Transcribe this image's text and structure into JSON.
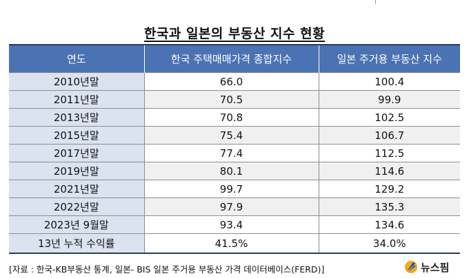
{
  "title": "한국과 일본의 부동산 지수 현황",
  "table": {
    "headers": [
      "연도",
      "한국 주택매매가격 종합지수",
      "일본 주거용 부동산 지수"
    ],
    "rows": [
      [
        "2010년말",
        "66.0",
        "100.4"
      ],
      [
        "2011년말",
        "70.5",
        "99.9"
      ],
      [
        "2013년말",
        "70.8",
        "102.5"
      ],
      [
        "2015년말",
        "75.4",
        "106.7"
      ],
      [
        "2017년말",
        "77.4",
        "112.5"
      ],
      [
        "2019년말",
        "80.1",
        "114.6"
      ],
      [
        "2021년말",
        "99.7",
        "129.2"
      ],
      [
        "2022년말",
        "97.9",
        "135.3"
      ],
      [
        "2023년 9월말",
        "93.4",
        "134.6"
      ]
    ],
    "total_row": [
      "13년 누적 수익률",
      "41.5%",
      "34.0%"
    ]
  },
  "source": "[자료 : 한국-KB부동산 통계, 일본- BIS 일본 주거용 부동산 가격 데이터베이스(FERD)]",
  "logo": {
    "text": "뉴스핌",
    "icon": "newspim-logo-icon"
  }
}
